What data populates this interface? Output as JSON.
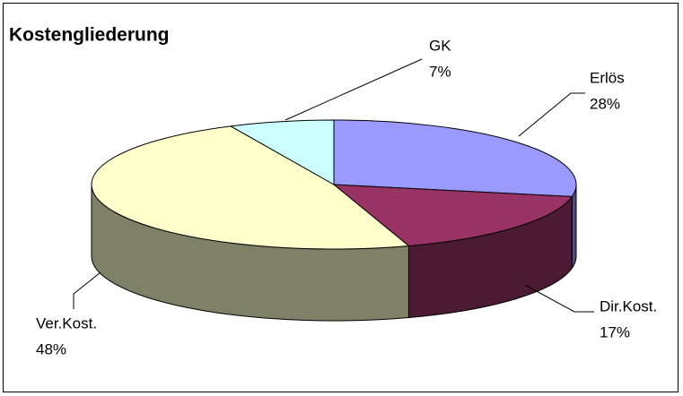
{
  "chart_data": {
    "type": "pie3d",
    "title": "Kostengliederung",
    "categories": [
      "Erlös",
      "Dir.Kost.",
      "Ver.Kost.",
      "GK"
    ],
    "values": [
      28,
      17,
      48,
      7
    ],
    "value_labels": [
      "28%",
      "17%",
      "48%",
      "7%"
    ],
    "colors": [
      "#9999ff",
      "#993366",
      "#ffffcc",
      "#ccffff"
    ]
  }
}
